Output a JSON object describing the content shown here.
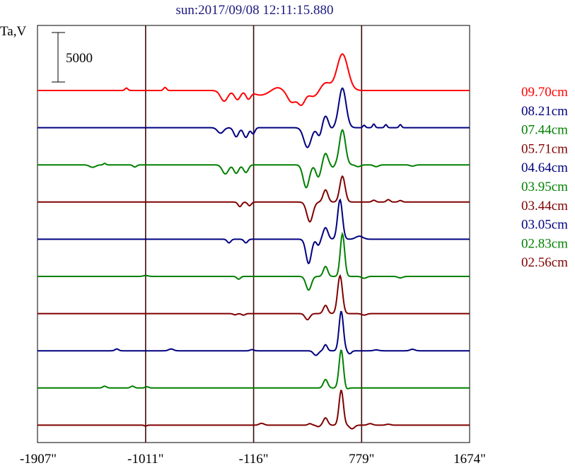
{
  "chart_data": {
    "type": "line",
    "title": "sun:2017/09/08 12:11:15.880",
    "ylabel": "Ta,V",
    "xlabel": "",
    "scale_bar": {
      "label": "5000",
      "value": 5000
    },
    "x_ticks": [
      {
        "value": -1907,
        "label": "-1907\""
      },
      {
        "value": -1011,
        "label": "-1011\""
      },
      {
        "value": -116,
        "label": "-116\""
      },
      {
        "value": 779,
        "label": "779\""
      },
      {
        "value": 1674,
        "label": "1674\""
      }
    ],
    "xlim": [
      -1907,
      1674
    ],
    "vertical_markers": [
      -1011,
      -116,
      779
    ],
    "series": [
      {
        "name": "09.70cm",
        "color": "#ff0000",
        "features": [
          [
            -1170,
            0.8,
            12
          ],
          [
            -850,
            1.0,
            12
          ],
          [
            -360,
            -3.5,
            30
          ],
          [
            -250,
            -3.0,
            25
          ],
          [
            -160,
            -2.5,
            20
          ],
          [
            -60,
            -1.5,
            60
          ],
          [
            80,
            1.0,
            40
          ],
          [
            200,
            -3.8,
            35
          ],
          [
            280,
            -4.5,
            30
          ],
          [
            380,
            -2.0,
            40
          ],
          [
            480,
            2.5,
            40
          ],
          [
            620,
            12.0,
            45
          ]
        ]
      },
      {
        "name": "08.21cm",
        "color": "#000080",
        "features": [
          [
            -390,
            -1.8,
            25
          ],
          [
            -260,
            -3.0,
            20
          ],
          [
            -180,
            -3.2,
            20
          ],
          [
            -120,
            -2.0,
            15
          ],
          [
            330,
            -6.5,
            30
          ],
          [
            430,
            -3.0,
            20
          ],
          [
            480,
            4.0,
            25
          ],
          [
            520,
            -0.8,
            20
          ],
          [
            620,
            13.0,
            30
          ],
          [
            800,
            0.8,
            10
          ],
          [
            880,
            1.2,
            10
          ],
          [
            980,
            1.0,
            10
          ],
          [
            1100,
            1.0,
            10
          ]
        ]
      },
      {
        "name": "07.44cm",
        "color": "#008000",
        "features": [
          [
            -1450,
            -0.8,
            25
          ],
          [
            -1350,
            0.5,
            10
          ],
          [
            -1100,
            -0.7,
            15
          ],
          [
            -350,
            -3.0,
            25
          ],
          [
            -260,
            -2.8,
            20
          ],
          [
            -180,
            -2.5,
            20
          ],
          [
            320,
            -7.5,
            25
          ],
          [
            420,
            -4.0,
            20
          ],
          [
            480,
            3.8,
            20
          ],
          [
            540,
            -0.8,
            15
          ],
          [
            620,
            11.5,
            25
          ],
          [
            750,
            -0.6,
            20
          ],
          [
            900,
            -0.6,
            20
          ],
          [
            1200,
            -0.4,
            20
          ]
        ]
      },
      {
        "name": "05.71cm",
        "color": "#800000",
        "features": [
          [
            -230,
            -1.5,
            15
          ],
          [
            -150,
            -1.2,
            15
          ],
          [
            350,
            -6.5,
            25
          ],
          [
            480,
            4.0,
            20
          ],
          [
            620,
            8.5,
            22
          ],
          [
            880,
            0.6,
            15
          ],
          [
            1000,
            0.8,
            15
          ],
          [
            1100,
            0.5,
            15
          ]
        ]
      },
      {
        "name": "04.64cm",
        "color": "#000080",
        "features": [
          [
            -320,
            -1.2,
            15
          ],
          [
            -180,
            -1.2,
            15
          ],
          [
            340,
            -8.0,
            22
          ],
          [
            420,
            -2.0,
            15
          ],
          [
            480,
            3.8,
            20
          ],
          [
            600,
            13.0,
            20
          ],
          [
            760,
            1.0,
            30
          ]
        ]
      },
      {
        "name": "03.95cm",
        "color": "#008000",
        "features": [
          [
            -1010,
            0.3,
            20
          ],
          [
            -240,
            -0.9,
            15
          ],
          [
            340,
            -4.5,
            22
          ],
          [
            480,
            3.3,
            18
          ],
          [
            620,
            14.0,
            18
          ],
          [
            800,
            -0.6,
            20
          ],
          [
            1100,
            -0.5,
            20
          ]
        ]
      },
      {
        "name": "03.44cm",
        "color": "#800000",
        "features": [
          [
            -270,
            -0.4,
            15
          ],
          [
            -200,
            -0.5,
            15
          ],
          [
            330,
            -2.0,
            20
          ],
          [
            480,
            2.7,
            18
          ],
          [
            600,
            12.5,
            20
          ],
          [
            800,
            -0.5,
            20
          ]
        ]
      },
      {
        "name": "03.05cm",
        "color": "#000080",
        "features": [
          [
            -1250,
            0.6,
            15
          ],
          [
            -800,
            0.6,
            20
          ],
          [
            -130,
            0.4,
            15
          ],
          [
            400,
            -1.5,
            20
          ],
          [
            480,
            2.0,
            15
          ],
          [
            610,
            13.0,
            18
          ],
          [
            680,
            -1.0,
            15
          ],
          [
            900,
            0.3,
            20
          ],
          [
            1200,
            0.5,
            20
          ]
        ]
      },
      {
        "name": "02.83cm",
        "color": "#008000",
        "features": [
          [
            -1350,
            0.6,
            15
          ],
          [
            -1120,
            0.6,
            15
          ],
          [
            -1000,
            0.4,
            15
          ],
          [
            480,
            2.8,
            18
          ],
          [
            610,
            12.5,
            18
          ],
          [
            650,
            -0.6,
            15
          ]
        ]
      },
      {
        "name": "02.56cm",
        "color": "#800000",
        "features": [
          [
            -1011,
            -0.3,
            10
          ],
          [
            -50,
            0.6,
            20
          ],
          [
            350,
            0.5,
            15
          ],
          [
            420,
            -0.5,
            15
          ],
          [
            480,
            2.4,
            18
          ],
          [
            610,
            11.5,
            18
          ],
          [
            700,
            -1.2,
            20
          ],
          [
            850,
            0.5,
            20
          ],
          [
            1000,
            0.3,
            20
          ]
        ]
      }
    ]
  }
}
